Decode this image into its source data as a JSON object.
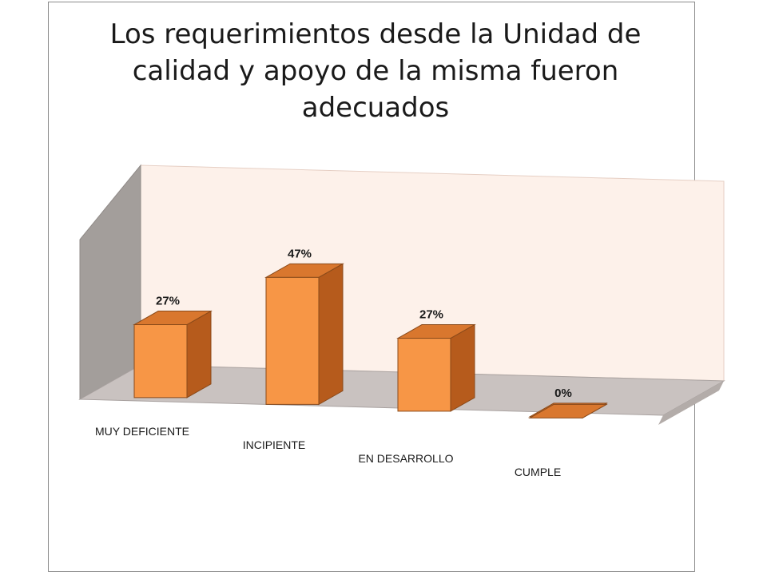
{
  "chart_data": {
    "type": "bar",
    "title_lines": [
      "Los requerimientos desde la Unidad de",
      "calidad y apoyo de la misma fueron",
      "adecuados"
    ],
    "categories": [
      "MUY DEFICIENTE",
      "INCIPIENTE",
      "EN DESARROLLO",
      "CUMPLE"
    ],
    "values": [
      27,
      47,
      27,
      0
    ],
    "data_labels": [
      "27%",
      "47%",
      "27%",
      "0%"
    ],
    "unit": "%",
    "ylim": [
      0,
      60
    ],
    "grid": false,
    "legend": "none",
    "colors": {
      "bar_front": "#f79646",
      "bar_side": "#b65b1c",
      "bar_top": "#d9772e",
      "bar_edge": "#8a4a1a",
      "back_wall": "#fdf1ea",
      "side_wall": "#a39e9b",
      "floor": "#c9c2c0"
    }
  }
}
